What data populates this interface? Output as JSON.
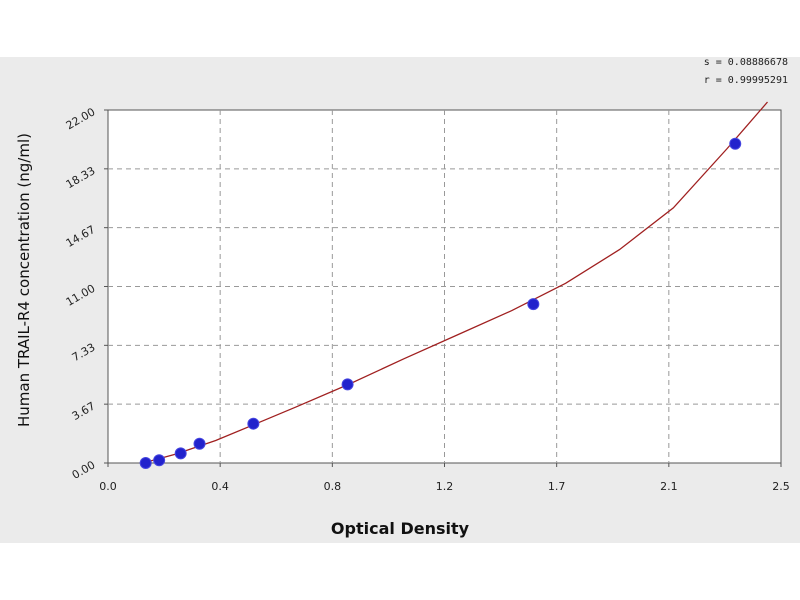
{
  "chart_data": {
    "type": "scatter",
    "title": "",
    "xlabel": "Optical Density",
    "ylabel": "Human TRAIL-R4 concentration (ng/ml)",
    "xlim": [
      0.0,
      2.5
    ],
    "ylim": [
      0.0,
      22.0
    ],
    "x_ticks": [
      "0.0",
      "0.4",
      "0.8",
      "1.2",
      "1.7",
      "2.1",
      "2.5"
    ],
    "y_ticks": [
      "0.00",
      "3.67",
      "7.33",
      "11.00",
      "14.67",
      "18.33",
      "22.00"
    ],
    "grid": true,
    "points": [
      {
        "x": 0.14,
        "y": 0.0
      },
      {
        "x": 0.19,
        "y": 0.17
      },
      {
        "x": 0.27,
        "y": 0.6
      },
      {
        "x": 0.34,
        "y": 1.2
      },
      {
        "x": 0.54,
        "y": 2.45
      },
      {
        "x": 0.89,
        "y": 4.9
      },
      {
        "x": 1.58,
        "y": 9.9
      },
      {
        "x": 2.33,
        "y": 19.9
      }
    ],
    "fit_curve": {
      "x": [
        0.13,
        0.25,
        0.4,
        0.55,
        0.7,
        0.9,
        1.1,
        1.3,
        1.5,
        1.7,
        1.9,
        2.1,
        2.3,
        2.45
      ],
      "y": [
        0.0,
        0.55,
        1.4,
        2.45,
        3.5,
        4.95,
        6.5,
        8.0,
        9.5,
        11.2,
        13.3,
        15.9,
        19.6,
        22.5
      ]
    },
    "stats": [
      "s = 0.08886678",
      "r = 0.99995291"
    ],
    "colors": {
      "points": "#2222cc",
      "curve": "#a02020",
      "grid": "#999999",
      "background": "#ebebeb",
      "plot_area": "#ffffff"
    }
  }
}
